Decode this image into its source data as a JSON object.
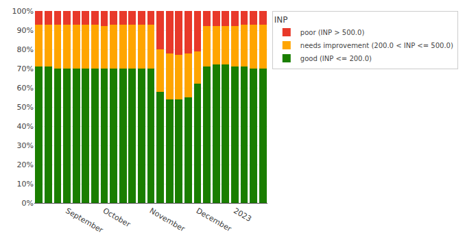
{
  "chart_data": {
    "type": "bar",
    "title": "INP",
    "stacked": true,
    "categories": [
      null,
      null,
      null,
      "September",
      null,
      null,
      null,
      "October",
      null,
      null,
      null,
      null,
      "November",
      null,
      null,
      null,
      null,
      "December",
      null,
      null,
      null,
      "2023",
      null,
      null,
      null
    ],
    "series": [
      {
        "name": "good (INP <= 200.0)",
        "color": "#1a7e00",
        "values": [
          71,
          71,
          70,
          70,
          70,
          70,
          70,
          70,
          70,
          70,
          70,
          70,
          70,
          58,
          54,
          54,
          55,
          62,
          71,
          72,
          72,
          71,
          71,
          70,
          70
        ]
      },
      {
        "name": "needs improvement (200.0 < INP <= 500.0)",
        "color": "#ffa500",
        "values": [
          22,
          22,
          23,
          23,
          23,
          23,
          23,
          22,
          23,
          23,
          23,
          23,
          23,
          22,
          24,
          23,
          23,
          17,
          21,
          20,
          20,
          21,
          22,
          23,
          23
        ]
      },
      {
        "name": "poor (INP > 500.0)",
        "color": "#e8392a",
        "values": [
          7,
          7,
          7,
          7,
          7,
          7,
          7,
          8,
          7,
          7,
          7,
          7,
          7,
          20,
          22,
          23,
          22,
          21,
          8,
          8,
          8,
          8,
          7,
          7,
          7
        ]
      }
    ],
    "ylim": [
      0,
      100
    ],
    "yticks": [
      {
        "value": 0,
        "label": "0%"
      },
      {
        "value": 10,
        "label": "10%"
      },
      {
        "value": 20,
        "label": "20%"
      },
      {
        "value": 30,
        "label": "30%"
      },
      {
        "value": 40,
        "label": "40%"
      },
      {
        "value": 50,
        "label": "50%"
      },
      {
        "value": 60,
        "label": "60%"
      },
      {
        "value": 70,
        "label": "70%"
      },
      {
        "value": 80,
        "label": "80%"
      },
      {
        "value": 90,
        "label": "90%"
      },
      {
        "value": 100,
        "label": "100%"
      }
    ],
    "grid": true,
    "legend": "right"
  }
}
